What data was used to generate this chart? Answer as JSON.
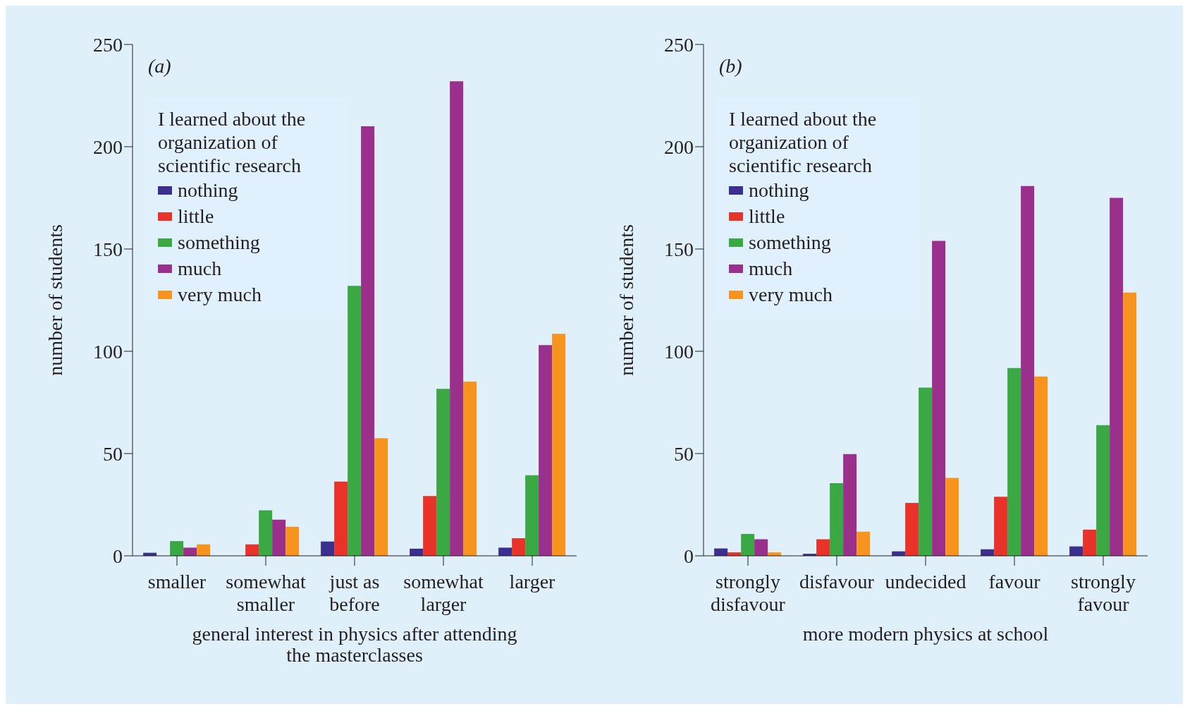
{
  "chart_data": [
    {
      "type": "bar",
      "title": "(a)",
      "xlabel": "general interest in physics after attending the masterclasses",
      "ylabel": "number of students",
      "legend_title": "I learned about the organization of scientific research",
      "legend": "top left",
      "categories": [
        "smaller",
        "somewhat smaller",
        "just as before",
        "somewhat larger",
        "larger"
      ],
      "ylim": [
        0,
        250
      ],
      "yticks": [
        0,
        50,
        100,
        150,
        200,
        250
      ],
      "series": [
        {
          "name": "nothing",
          "color": "#3b2f8f",
          "values": [
            1.5,
            0,
            7,
            3.5,
            4
          ]
        },
        {
          "name": "little",
          "color": "#e8322a",
          "values": [
            0,
            5.6,
            36.3,
            29.2,
            8.6
          ]
        },
        {
          "name": "something",
          "color": "#3aa843",
          "values": [
            7.2,
            22.2,
            132,
            81.6,
            39.4
          ]
        },
        {
          "name": "much",
          "color": "#9a2f8c",
          "values": [
            4,
            17.7,
            210,
            232,
            103
          ]
        },
        {
          "name": "very much",
          "color": "#f7941d",
          "values": [
            5.6,
            14.2,
            57.5,
            85.2,
            108.5
          ]
        }
      ]
    },
    {
      "type": "bar",
      "title": "(b)",
      "xlabel": "more modern physics at school",
      "ylabel": "number of students",
      "legend_title": "I learned about the organization of scientific research",
      "legend": "top left",
      "categories": [
        "strongly disfavour",
        "disfavour",
        "undecided",
        "favour",
        "strongly favour"
      ],
      "ylim": [
        0,
        250
      ],
      "yticks": [
        0,
        50,
        100,
        150,
        200,
        250
      ],
      "series": [
        {
          "name": "nothing",
          "color": "#3b2f8f",
          "values": [
            3.6,
            1,
            2.2,
            3.2,
            4.6
          ]
        },
        {
          "name": "little",
          "color": "#e8322a",
          "values": [
            1.7,
            8.1,
            25.9,
            28.9,
            12.8
          ]
        },
        {
          "name": "something",
          "color": "#3aa843",
          "values": [
            10.7,
            35.5,
            82.2,
            91.8,
            63.9
          ]
        },
        {
          "name": "much",
          "color": "#9a2f8c",
          "values": [
            8.1,
            49.7,
            154,
            180.8,
            175
          ]
        },
        {
          "name": "very much",
          "color": "#f7941d",
          "values": [
            1.7,
            11.8,
            38.1,
            87.7,
            128.7
          ]
        }
      ]
    }
  ]
}
